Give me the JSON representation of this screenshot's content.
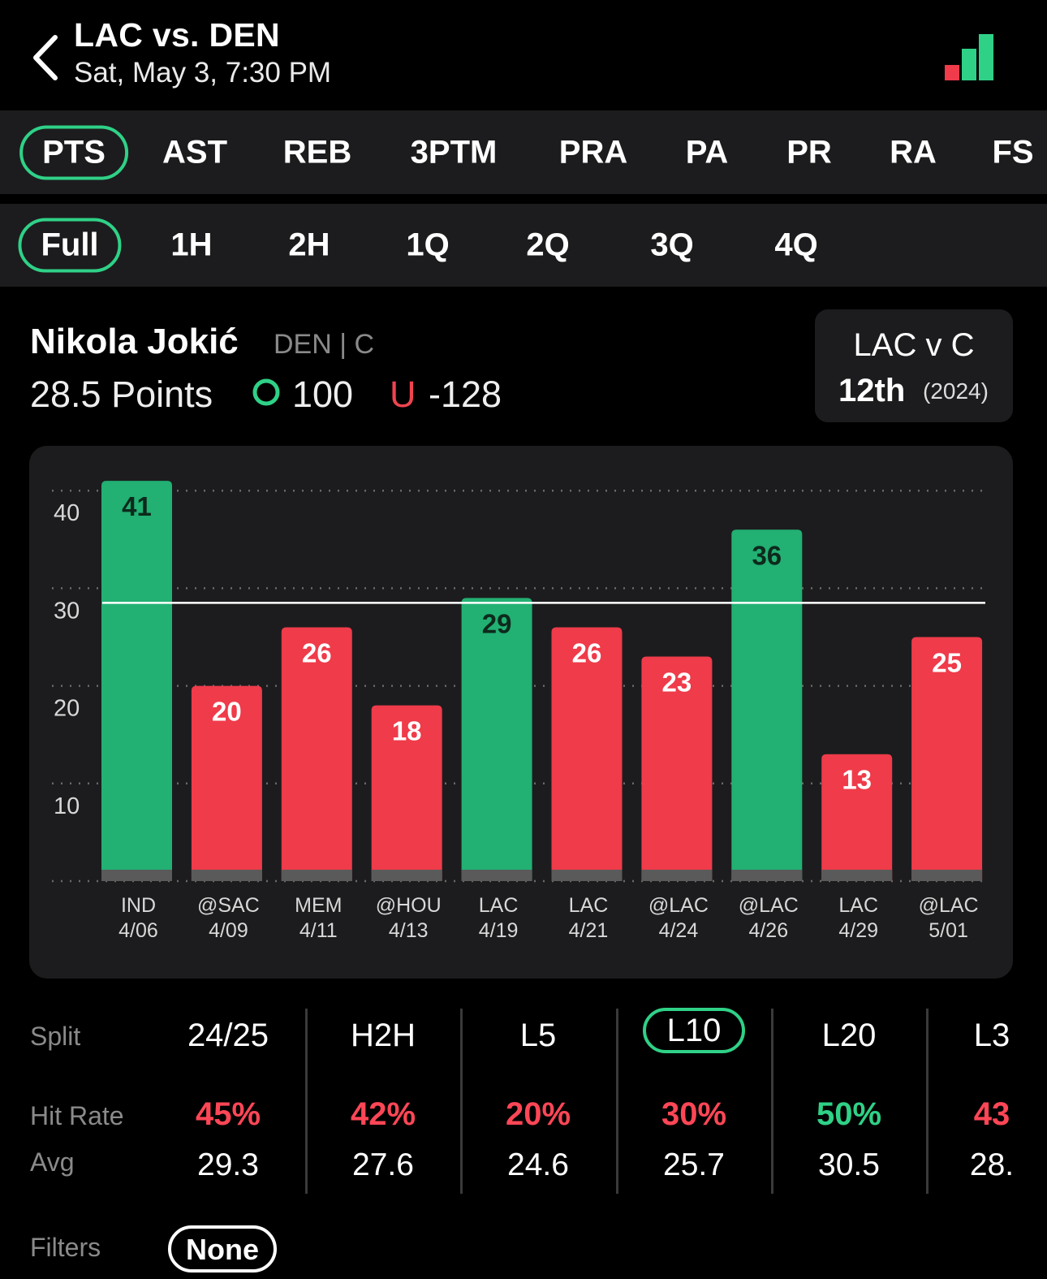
{
  "header": {
    "title": "LAC vs. DEN",
    "subtitle": "Sat, May 3, 7:30 PM"
  },
  "stat_tabs": [
    {
      "label": "PTS",
      "active": true
    },
    {
      "label": "AST"
    },
    {
      "label": "REB"
    },
    {
      "label": "3PTM"
    },
    {
      "label": "PRA"
    },
    {
      "label": "PA"
    },
    {
      "label": "PR"
    },
    {
      "label": "RA"
    },
    {
      "label": "FS"
    }
  ],
  "period_tabs": [
    {
      "label": "Full",
      "active": true
    },
    {
      "label": "1H"
    },
    {
      "label": "2H"
    },
    {
      "label": "1Q"
    },
    {
      "label": "2Q"
    },
    {
      "label": "3Q"
    },
    {
      "label": "4Q"
    }
  ],
  "player": {
    "name": "Nikola Jokić",
    "team_pos": "DEN | C",
    "line": "28.5 Points",
    "over_odds": "100",
    "under_label": "U",
    "under_odds": "-128"
  },
  "matchup_rank": {
    "title": "LAC v C",
    "rank": "12th",
    "year": "(2024)"
  },
  "colors": {
    "over": "#22b073",
    "under": "#ef3b4a",
    "accent": "#2fd187",
    "card": "#1c1c1e"
  },
  "chart_data": {
    "type": "bar",
    "categories": [
      "IND",
      "@SAC",
      "MEM",
      "@HOU",
      "LAC",
      "LAC",
      "@LAC",
      "@LAC",
      "LAC",
      "@LAC"
    ],
    "dates": [
      "4/06",
      "4/09",
      "4/11",
      "4/13",
      "4/19",
      "4/21",
      "4/24",
      "4/26",
      "4/29",
      "5/01"
    ],
    "values": [
      41,
      20,
      26,
      18,
      29,
      26,
      23,
      36,
      13,
      25
    ],
    "results": [
      "over",
      "under",
      "under",
      "under",
      "over",
      "under",
      "under",
      "over",
      "under",
      "under"
    ],
    "line": 28.5,
    "yticks": [
      10,
      20,
      30,
      40
    ],
    "ylim": [
      0,
      42
    ],
    "grid": true
  },
  "splits": {
    "row_labels": {
      "split": "Split",
      "hit_rate": "Hit Rate",
      "avg": "Avg"
    },
    "columns": [
      {
        "label": "24/25",
        "hit_rate": "45%",
        "avg": "29.3",
        "status": "under"
      },
      {
        "label": "H2H",
        "hit_rate": "42%",
        "avg": "27.6",
        "status": "under"
      },
      {
        "label": "L5",
        "hit_rate": "20%",
        "avg": "24.6",
        "status": "under"
      },
      {
        "label": "L10",
        "hit_rate": "30%",
        "avg": "25.7",
        "status": "under",
        "active": true
      },
      {
        "label": "L20",
        "hit_rate": "50%",
        "avg": "30.5",
        "status": "over"
      },
      {
        "label": "L3",
        "hit_rate": "43",
        "avg": "28.",
        "status": "under"
      }
    ]
  },
  "filters": {
    "label": "Filters",
    "value": "None"
  }
}
